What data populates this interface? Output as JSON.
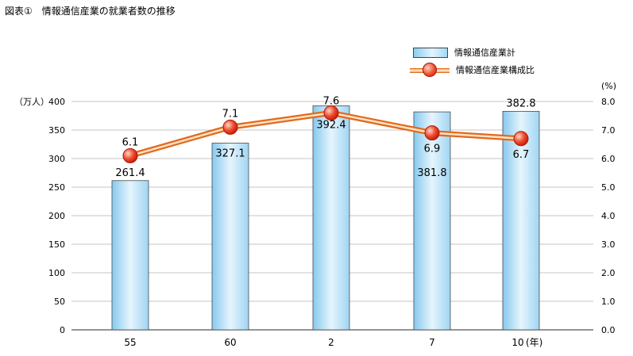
{
  "title": "図表①　情報通信産業の就業者数の推移",
  "chart_data": {
    "type": "bar",
    "categories": [
      "55",
      "60",
      "2",
      "7",
      "10"
    ],
    "x_unit": "(年)",
    "series": [
      {
        "name": "情報通信産業計",
        "type": "bar",
        "axis": "left",
        "values": [
          261.4,
          327.1,
          392.4,
          381.8,
          382.8
        ],
        "labels": [
          "261.4",
          "327.1",
          "392.4",
          "381.8",
          "382.8"
        ]
      },
      {
        "name": "情報通信産業構成比",
        "type": "line",
        "axis": "right",
        "values": [
          6.1,
          7.1,
          7.6,
          6.9,
          6.7
        ],
        "labels": [
          "6.1",
          "7.1",
          "7.6",
          "6.9",
          "6.7"
        ]
      }
    ],
    "y_left": {
      "unit": "（万人）",
      "range": [
        0,
        400
      ],
      "ticks": [
        "0",
        "50",
        "100",
        "150",
        "200",
        "250",
        "300",
        "350",
        "400"
      ]
    },
    "y_right": {
      "unit": "(%)",
      "range": [
        0,
        8
      ],
      "ticks": [
        "0.0",
        "1.0",
        "2.0",
        "3.0",
        "4.0",
        "5.0",
        "6.0",
        "7.0",
        "8.0"
      ]
    },
    "grid": true,
    "legend_position": "top-right",
    "colors": {
      "bar_fill": "#a8dbf5",
      "bar_stroke": "#4a4a4a",
      "line": "#f08a3c",
      "marker": "#e8402a",
      "grid": "#b0b0b0"
    }
  }
}
